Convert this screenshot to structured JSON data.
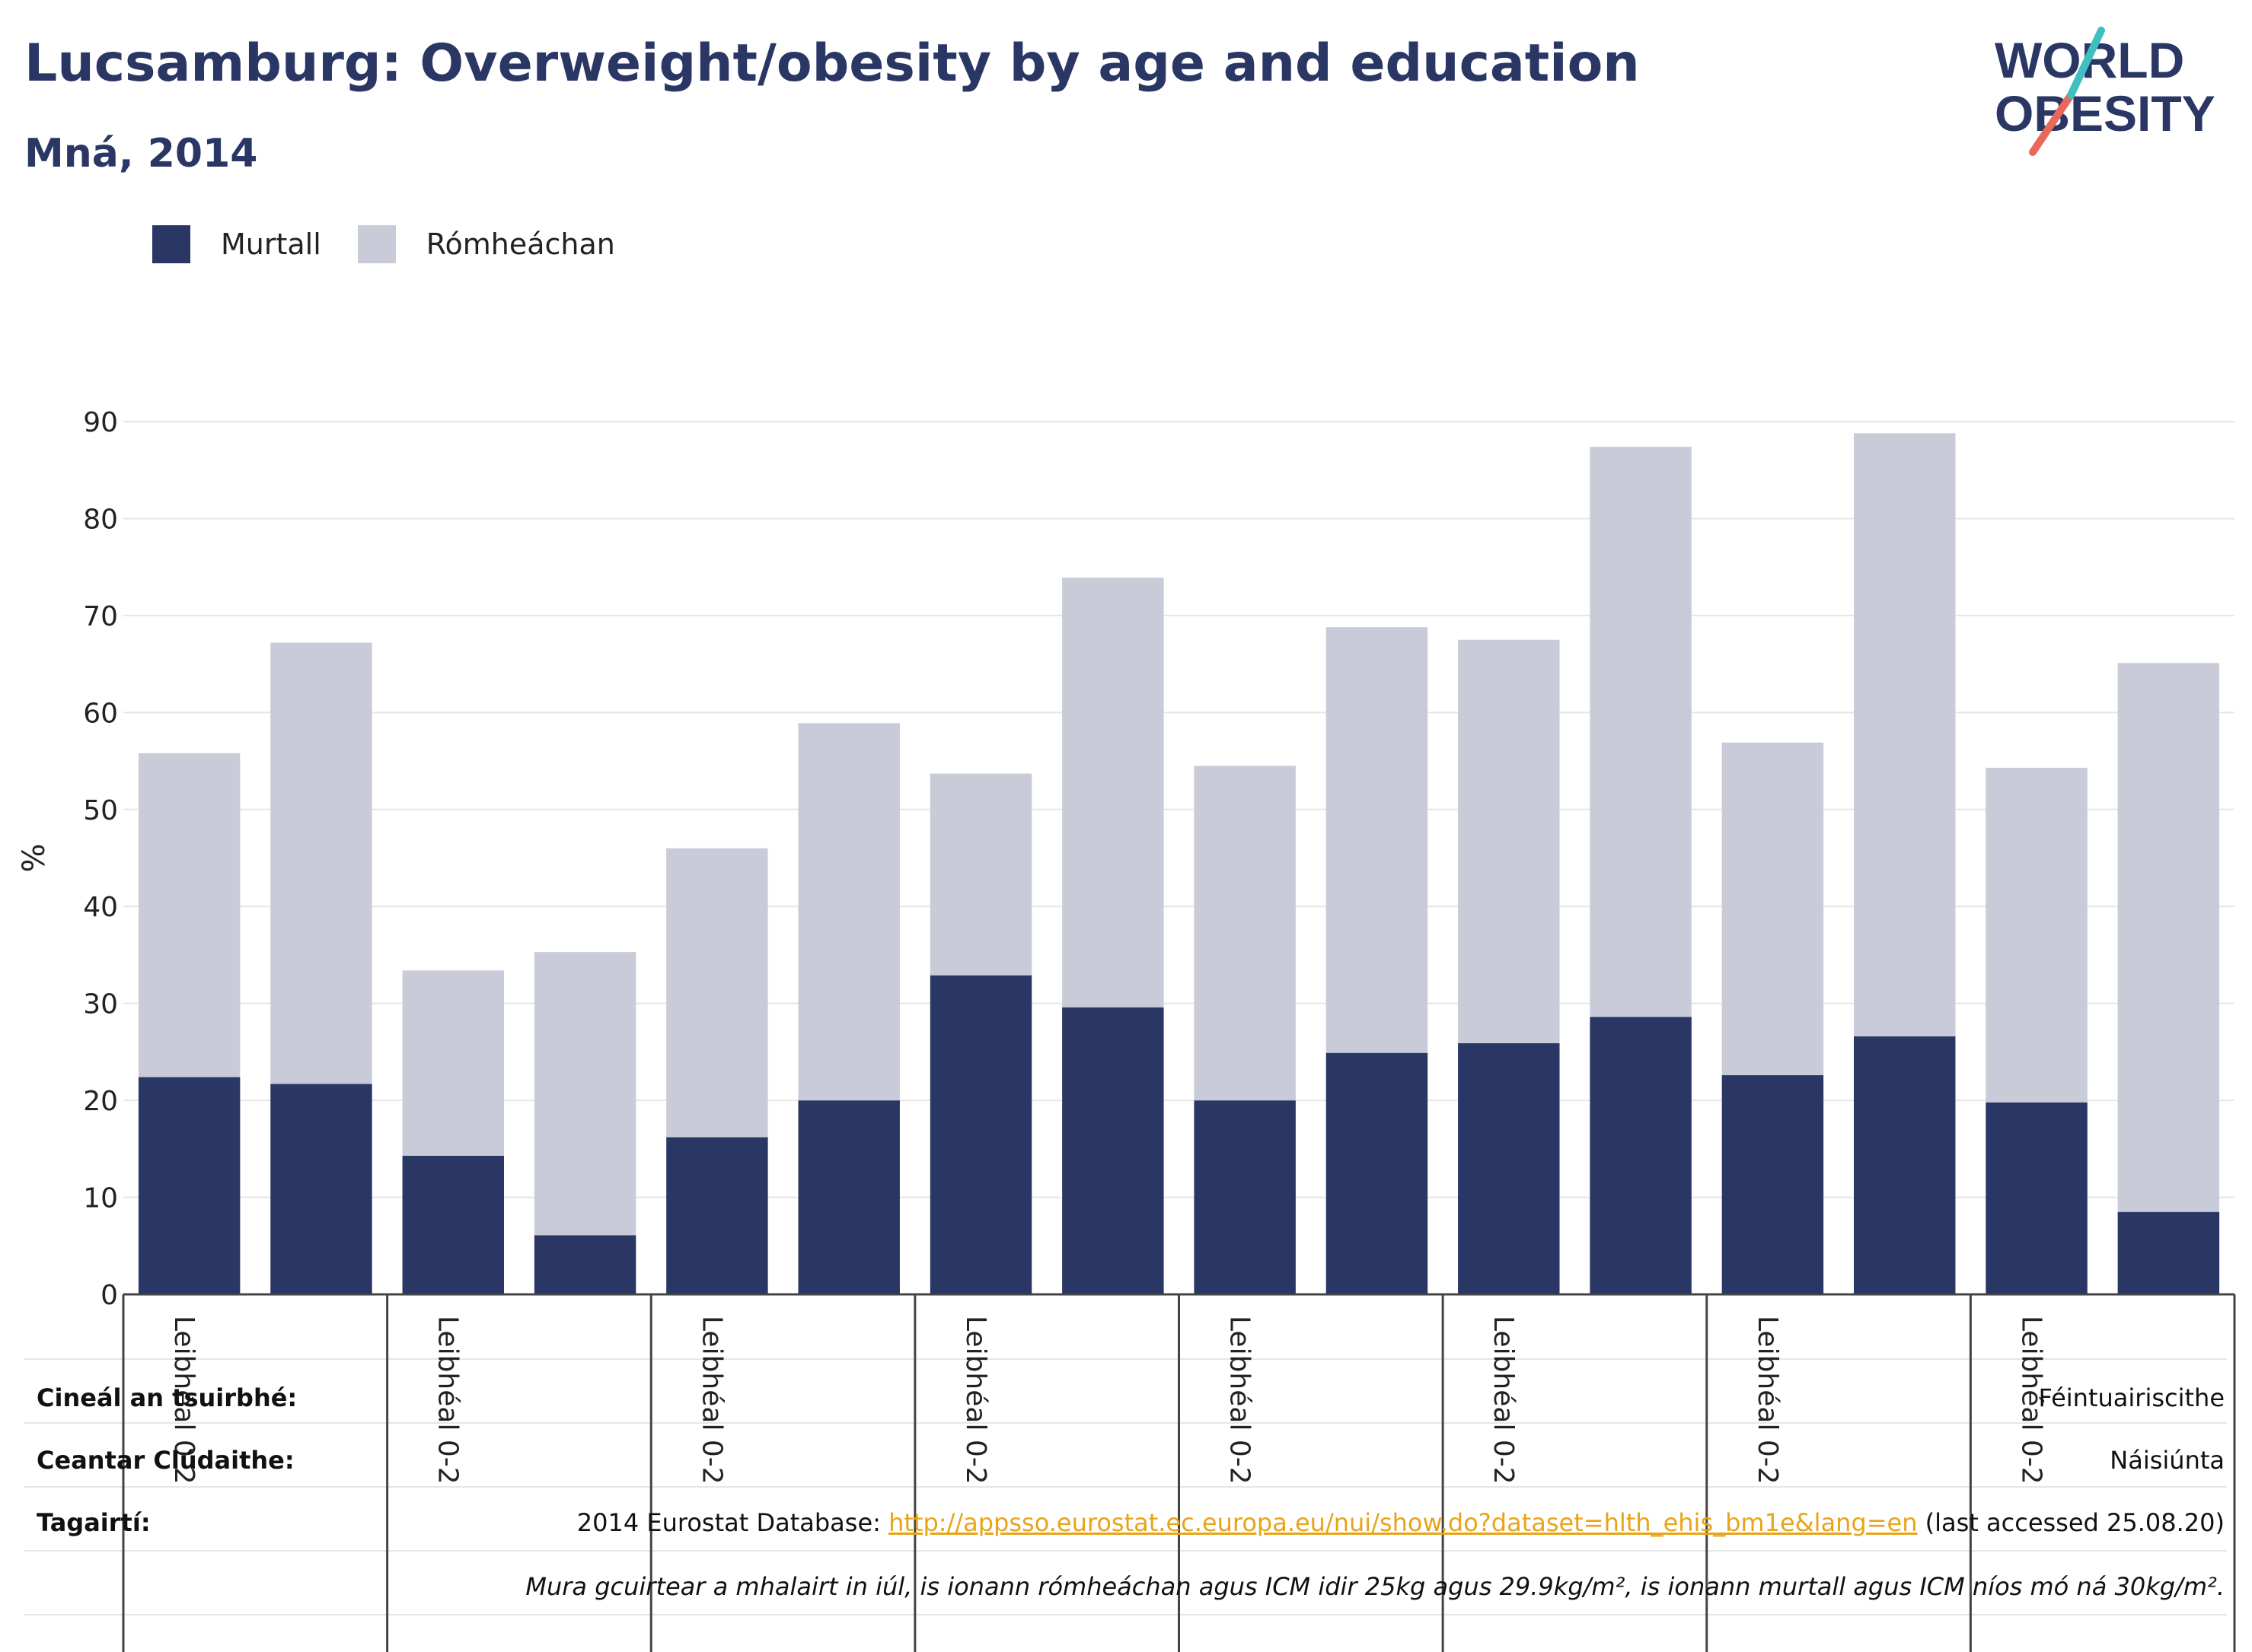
{
  "header": {
    "title": "Lucsamburg: Overweight/obesity by age and education",
    "subtitle": "Mná, 2014"
  },
  "logo": {
    "line1": "WORLD",
    "line2": "OBESITY"
  },
  "colors": {
    "obese": "#2a3764",
    "overweight": "#c9cbd8",
    "title": "#2a3764",
    "link": "#e8a419"
  },
  "legend": [
    {
      "label": "Murtall",
      "color": "#2a3764"
    },
    {
      "label": "Rómheáchan",
      "color": "#c9cbd8"
    }
  ],
  "chart_data": {
    "type": "bar",
    "stacked": true,
    "ylabel": "%",
    "ylim": [
      0,
      90
    ],
    "yticks": [
      0,
      10,
      20,
      30,
      40,
      50,
      60,
      70,
      80,
      90
    ],
    "grid": true,
    "group_labels": [
      "Leibhéal 0-2",
      "Leibhéal 0-2",
      "Leibhéal 0-2",
      "Leibhéal 0-2",
      "Leibhéal 0-2",
      "Leibhéal 0-2",
      "Leibhéal 0-2",
      "Leibhéal 0-2"
    ],
    "series": [
      {
        "name": "Murtall",
        "values": [
          22.4,
          21.7,
          14.3,
          6.1,
          16.2,
          20.0,
          32.9,
          29.6,
          20.0,
          24.9,
          25.9,
          28.6,
          22.6,
          26.6,
          19.8,
          8.5
        ]
      },
      {
        "name": "Rómheáchan",
        "values": [
          33.4,
          45.5,
          19.1,
          29.2,
          29.8,
          38.9,
          20.8,
          44.3,
          34.5,
          43.9,
          41.6,
          58.8,
          34.3,
          62.2,
          34.5,
          56.6
        ]
      }
    ]
  },
  "footer": {
    "survey_type_label": "Cineál an tsuirbhé:",
    "survey_type_value": "Féintuairiscithe",
    "area_label": "Ceantar Clúdaithe:",
    "area_value": "Náisiúnta",
    "references_label": "Tagairtí:",
    "references_prefix": "2014 Eurostat Database: ",
    "references_link": "http://appsso.eurostat.ec.europa.eu/nui/show.do?dataset=hlth_ehis_bm1e&lang=en",
    "references_suffix": " (last accessed 25.08.20)",
    "note": "Mura gcuirtear a mhalairt in iúl, is ionann rómheáchan agus ICM idir 25kg agus 29.9kg/m², is ionann murtall agus ICM níos mó ná 30kg/m²."
  }
}
